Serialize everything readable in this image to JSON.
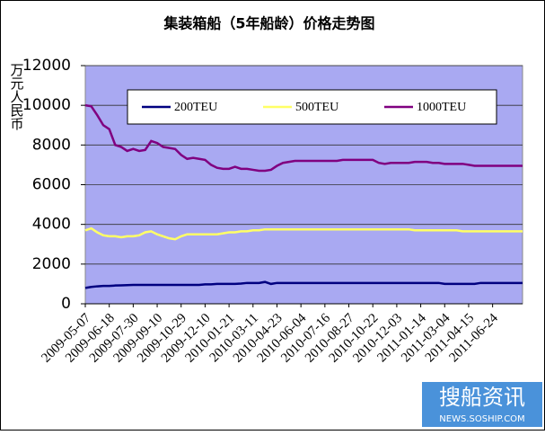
{
  "chart_data": {
    "type": "line",
    "title": "集装箱船（5年船龄）价格走势图",
    "y_label": "万元人民币",
    "watermark": "搜船资讯",
    "watermark_url": "NEWS.SOSHIP.COM",
    "categories": [
      "2009-05-07",
      null,
      null,
      null,
      "2009-06-18",
      null,
      null,
      null,
      "2009-07-30",
      null,
      null,
      null,
      "2009-09-10",
      null,
      null,
      null,
      "2009-10-29",
      null,
      null,
      null,
      "2009-12-10",
      null,
      null,
      null,
      "2010-01-21",
      null,
      null,
      null,
      "2010-03-11",
      null,
      null,
      null,
      "2010-04-23",
      null,
      null,
      null,
      "2010-06-04",
      null,
      null,
      null,
      "2010-07-16",
      null,
      null,
      null,
      "2010-08-27",
      null,
      null,
      null,
      "2010-10-22",
      null,
      null,
      null,
      "2010-12-03",
      null,
      null,
      null,
      "2011-01-14",
      null,
      null,
      null,
      "2011-03-04",
      null,
      null,
      null,
      "2011-04-15",
      null,
      null,
      null,
      "2011-06-24",
      null,
      null,
      null,
      null,
      null
    ],
    "series": [
      {
        "name": "200TEU",
        "color": "#000080",
        "values": [
          800,
          850,
          880,
          900,
          900,
          920,
          930,
          940,
          950,
          950,
          950,
          950,
          950,
          950,
          950,
          950,
          950,
          950,
          950,
          950,
          980,
          980,
          1000,
          1000,
          1000,
          1000,
          1020,
          1050,
          1050,
          1050,
          1100,
          1000,
          1050,
          1050,
          1050,
          1050,
          1050,
          1050,
          1050,
          1050,
          1050,
          1050,
          1050,
          1050,
          1050,
          1050,
          1050,
          1050,
          1050,
          1050,
          1050,
          1050,
          1050,
          1050,
          1050,
          1050,
          1050,
          1050,
          1050,
          1050,
          1000,
          1000,
          1000,
          1000,
          1000,
          1000,
          1050,
          1050,
          1050,
          1050,
          1050,
          1050,
          1050,
          1050
        ]
      },
      {
        "name": "500TEU",
        "color": "#ffff66",
        "values": [
          3700,
          3800,
          3600,
          3450,
          3400,
          3400,
          3350,
          3400,
          3400,
          3450,
          3600,
          3650,
          3500,
          3400,
          3300,
          3250,
          3400,
          3500,
          3500,
          3500,
          3500,
          3500,
          3500,
          3550,
          3600,
          3600,
          3650,
          3650,
          3700,
          3700,
          3750,
          3750,
          3750,
          3750,
          3750,
          3750,
          3750,
          3750,
          3750,
          3750,
          3750,
          3750,
          3750,
          3750,
          3750,
          3750,
          3750,
          3750,
          3750,
          3750,
          3750,
          3750,
          3750,
          3750,
          3750,
          3700,
          3700,
          3700,
          3700,
          3700,
          3700,
          3700,
          3700,
          3650,
          3650,
          3650,
          3650,
          3650,
          3650,
          3650,
          3650,
          3650,
          3650,
          3650
        ]
      },
      {
        "name": "1000TEU",
        "color": "#800080",
        "values": [
          10000,
          9950,
          9500,
          9000,
          8800,
          8000,
          7900,
          7700,
          7800,
          7700,
          7750,
          8200,
          8100,
          7900,
          7850,
          7800,
          7500,
          7300,
          7350,
          7300,
          7250,
          7000,
          6850,
          6800,
          6800,
          6900,
          6800,
          6800,
          6750,
          6700,
          6700,
          6750,
          6950,
          7100,
          7150,
          7200,
          7200,
          7200,
          7200,
          7200,
          7200,
          7200,
          7200,
          7250,
          7250,
          7250,
          7250,
          7250,
          7250,
          7100,
          7050,
          7100,
          7100,
          7100,
          7100,
          7150,
          7150,
          7150,
          7100,
          7100,
          7050,
          7050,
          7050,
          7050,
          7000,
          6950,
          6950,
          6950,
          6950,
          6950,
          6950,
          6950,
          6950,
          6950
        ]
      }
    ],
    "ylim": [
      0,
      12000
    ],
    "yticks": [
      0,
      2000,
      4000,
      6000,
      8000,
      10000,
      12000
    ],
    "grid": true
  }
}
